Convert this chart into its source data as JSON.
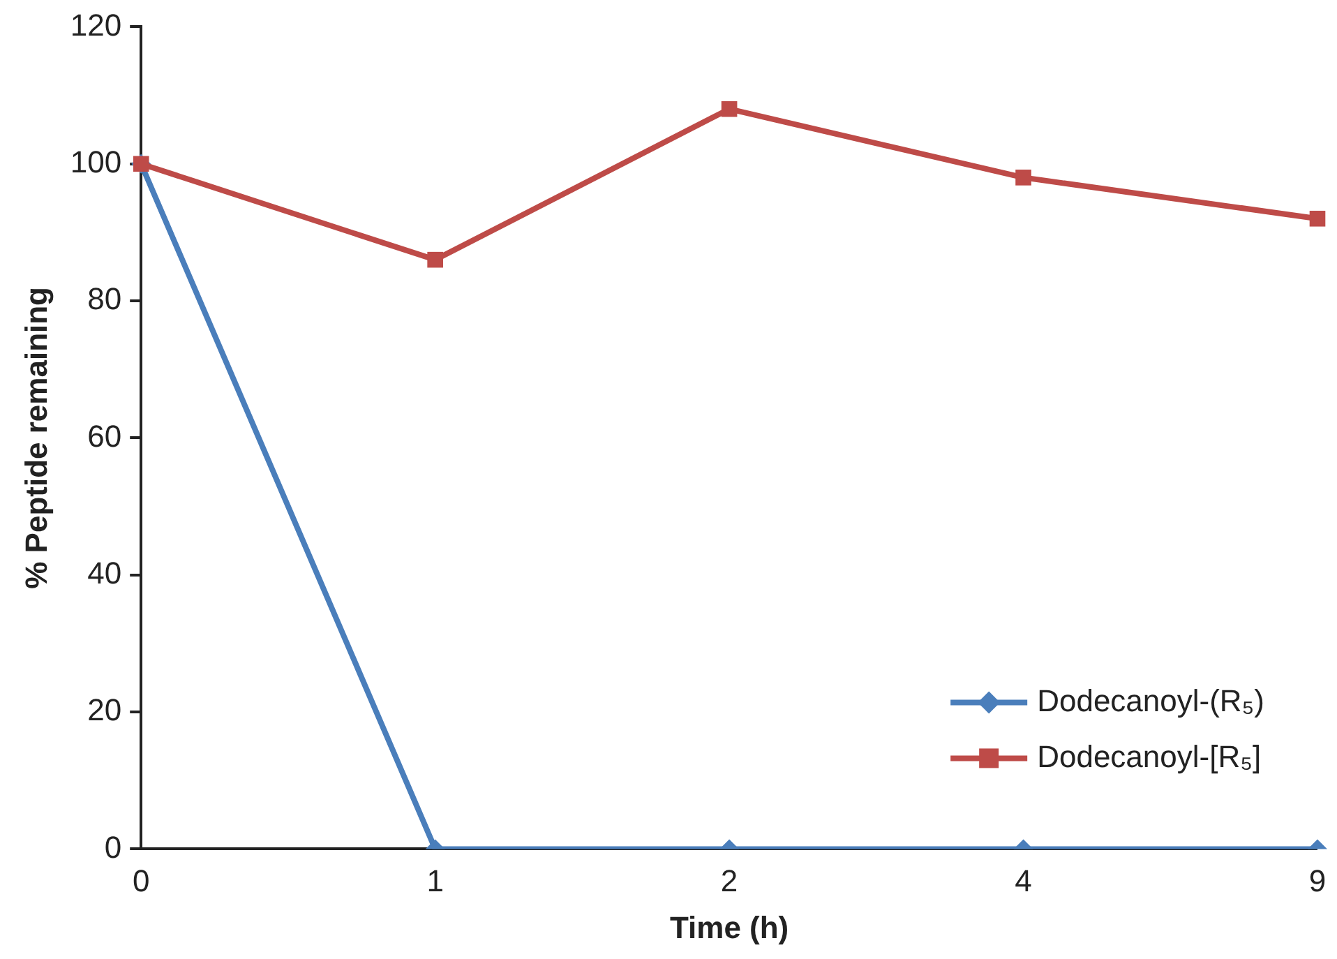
{
  "chart_data": {
    "type": "line",
    "xlabel": "Time (h)",
    "ylabel": "% Peptide remaining",
    "categories": [
      "0",
      "1",
      "2",
      "4",
      "9"
    ],
    "series": [
      {
        "name": "Dodecanoyl-(R₅)",
        "color": "#4a7ebb",
        "marker": "diamond",
        "values": [
          100,
          0,
          0,
          0,
          0
        ]
      },
      {
        "name": "Dodecanoyl-[R₅]",
        "color": "#be4b48",
        "marker": "square",
        "values": [
          100,
          86,
          108,
          98,
          92
        ]
      }
    ],
    "ylim": [
      0,
      120
    ],
    "yticks": [
      0,
      20,
      40,
      60,
      80,
      100,
      120
    ],
    "grid": false,
    "legend": "bottom right",
    "line_style": "solid"
  }
}
